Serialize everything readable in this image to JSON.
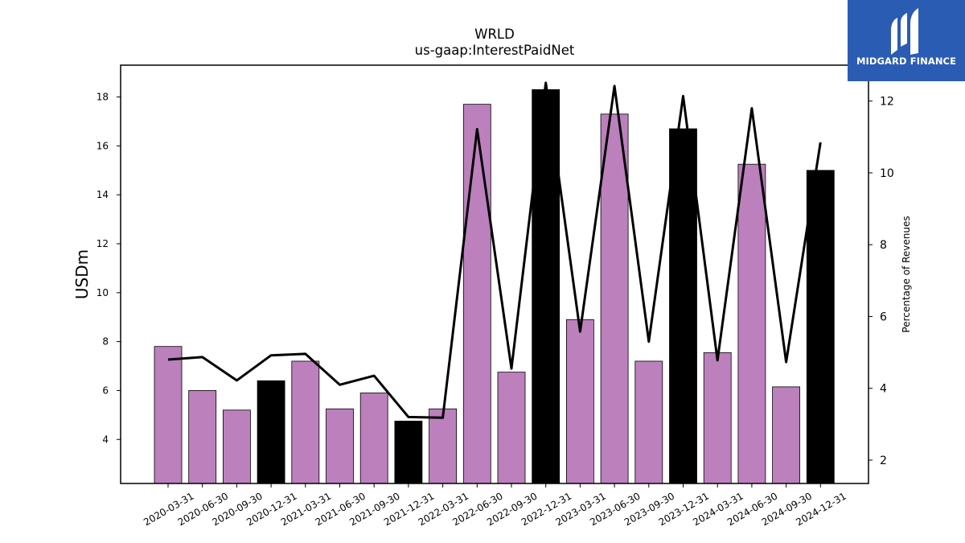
{
  "chart_data": {
    "type": "bar",
    "title": "WRLD",
    "subtitle": "us-gaap:InterestPaidNet",
    "ylabel": "USDm",
    "y2label": "Percentage of Revenues",
    "ylim": [
      2.2,
      19.3
    ],
    "y2lim": [
      1.35,
      13.0
    ],
    "yticks": [
      4,
      6,
      8,
      10,
      12,
      14,
      16,
      18
    ],
    "y2ticks": [
      2,
      4,
      6,
      8,
      10,
      12
    ],
    "categories": [
      "2020-03-31",
      "2020-06-30",
      "2020-09-30",
      "2020-12-31",
      "2021-03-31",
      "2021-06-30",
      "2021-09-30",
      "2021-12-31",
      "2022-03-31",
      "2022-06-30",
      "2022-09-30",
      "2022-12-31",
      "2023-03-31",
      "2023-06-30",
      "2023-09-30",
      "2023-12-31",
      "2024-03-31",
      "2024-06-30",
      "2024-09-30",
      "2024-12-31"
    ],
    "series": [
      {
        "type": "bar",
        "axis": "left",
        "values": [
          7.8,
          6.0,
          5.2,
          6.4,
          7.2,
          5.25,
          5.9,
          4.75,
          5.25,
          17.7,
          6.75,
          18.3,
          8.9,
          17.3,
          7.2,
          16.7,
          7.55,
          15.25,
          6.15,
          15.0
        ],
        "colors": [
          "#bc80bd",
          "#bc80bd",
          "#bc80bd",
          "#000000",
          "#bc80bd",
          "#bc80bd",
          "#bc80bd",
          "#000000",
          "#bc80bd",
          "#bc80bd",
          "#bc80bd",
          "#000000",
          "#bc80bd",
          "#bc80bd",
          "#bc80bd",
          "#000000",
          "#bc80bd",
          "#bc80bd",
          "#bc80bd",
          "#000000"
        ]
      },
      {
        "type": "line",
        "axis": "right",
        "color": "#000000",
        "values": [
          4.8,
          4.87,
          4.22,
          4.92,
          4.96,
          4.1,
          4.35,
          3.2,
          3.18,
          11.22,
          4.55,
          12.51,
          5.58,
          12.42,
          5.3,
          12.14,
          4.78,
          11.8,
          4.73,
          10.85
        ]
      }
    ],
    "grid": false,
    "legend": "none"
  },
  "logo": {
    "text": "MIDGARD FINANCE",
    "background": "#2b5cb3"
  }
}
